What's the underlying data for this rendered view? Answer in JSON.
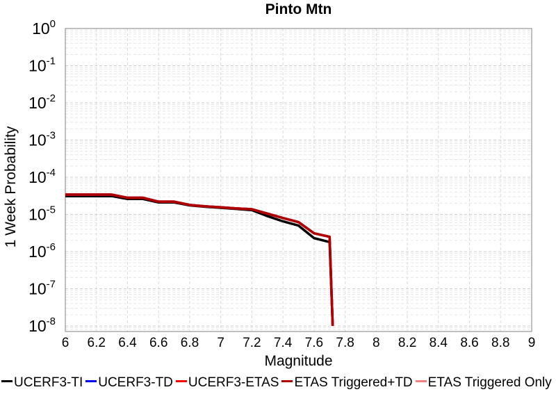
{
  "chart_data": {
    "type": "line",
    "title": "Pinto Mtn",
    "xlabel": "Magnitude",
    "ylabel": "1 Week Probability",
    "xlim": [
      6,
      9
    ],
    "ylim_log10": [
      -8.15,
      0
    ],
    "yscale": "log",
    "grid": true,
    "legend_position": "bottom",
    "x_ticks": [
      "6",
      "6.2",
      "6.4",
      "6.6",
      "6.8",
      "7",
      "7.2",
      "7.4",
      "7.6",
      "7.8",
      "8",
      "8.2",
      "8.4",
      "8.6",
      "8.8",
      "9"
    ],
    "y_tick_exponents": [
      "0",
      "-1",
      "-2",
      "-3",
      "-4",
      "-5",
      "-6",
      "-7",
      "-8"
    ],
    "y_tick_base": "10",
    "series": [
      {
        "name": "UCERF3-TI",
        "color": "#000000",
        "x": [
          6.0,
          6.1,
          6.2,
          6.3,
          6.4,
          6.5,
          6.6,
          6.7,
          6.8,
          6.9,
          7.0,
          7.1,
          7.2,
          7.3,
          7.4,
          7.5,
          7.6,
          7.7,
          7.72
        ],
        "y": [
          3.1e-05,
          3.1e-05,
          3.1e-05,
          3.1e-05,
          2.6e-05,
          2.6e-05,
          2.1e-05,
          2.1e-05,
          1.75e-05,
          1.6e-05,
          1.5e-05,
          1.4e-05,
          1.3e-05,
          9e-06,
          6.5e-06,
          5e-06,
          2.3e-06,
          1.8e-06,
          1e-08
        ]
      },
      {
        "name": "UCERF3-TD",
        "color": "#0000ff",
        "x": [
          6.0,
          6.1,
          6.2,
          6.3,
          6.4,
          6.5,
          6.6,
          6.7,
          6.8,
          6.9,
          7.0,
          7.1,
          7.2,
          7.3,
          7.4,
          7.5,
          7.6,
          7.7,
          7.72
        ],
        "y": [
          3.4e-05,
          3.4e-05,
          3.4e-05,
          3.4e-05,
          2.8e-05,
          2.8e-05,
          2.2e-05,
          2.2e-05,
          1.8e-05,
          1.65e-05,
          1.55e-05,
          1.45e-05,
          1.38e-05,
          1.05e-05,
          8e-06,
          6.2e-06,
          3.1e-06,
          2.5e-06,
          1e-08
        ]
      },
      {
        "name": "UCERF3-ETAS",
        "color": "#ff0000",
        "x": [
          6.0,
          6.1,
          6.2,
          6.3,
          6.4,
          6.5,
          6.6,
          6.7,
          6.8,
          6.9,
          7.0,
          7.1,
          7.2,
          7.3,
          7.4,
          7.5,
          7.6,
          7.7,
          7.72
        ],
        "y": [
          3.4e-05,
          3.4e-05,
          3.4e-05,
          3.4e-05,
          2.8e-05,
          2.8e-05,
          2.2e-05,
          2.2e-05,
          1.8e-05,
          1.65e-05,
          1.55e-05,
          1.45e-05,
          1.38e-05,
          1.05e-05,
          8e-06,
          6.2e-06,
          3.1e-06,
          2.5e-06,
          1e-08
        ]
      },
      {
        "name": "ETAS Triggered+TD",
        "color": "#b00000",
        "x": [
          6.0,
          6.1,
          6.2,
          6.3,
          6.4,
          6.5,
          6.6,
          6.7,
          6.8,
          6.9,
          7.0,
          7.1,
          7.2,
          7.3,
          7.4,
          7.5,
          7.6,
          7.7,
          7.72
        ],
        "y": [
          3.4e-05,
          3.4e-05,
          3.4e-05,
          3.4e-05,
          2.8e-05,
          2.8e-05,
          2.2e-05,
          2.2e-05,
          1.8e-05,
          1.65e-05,
          1.55e-05,
          1.45e-05,
          1.38e-05,
          1.05e-05,
          8e-06,
          6.2e-06,
          3.1e-06,
          2.5e-06,
          1e-08
        ]
      },
      {
        "name": "ETAS Triggered Only",
        "color": "#f08080",
        "x": [],
        "y": []
      }
    ]
  }
}
